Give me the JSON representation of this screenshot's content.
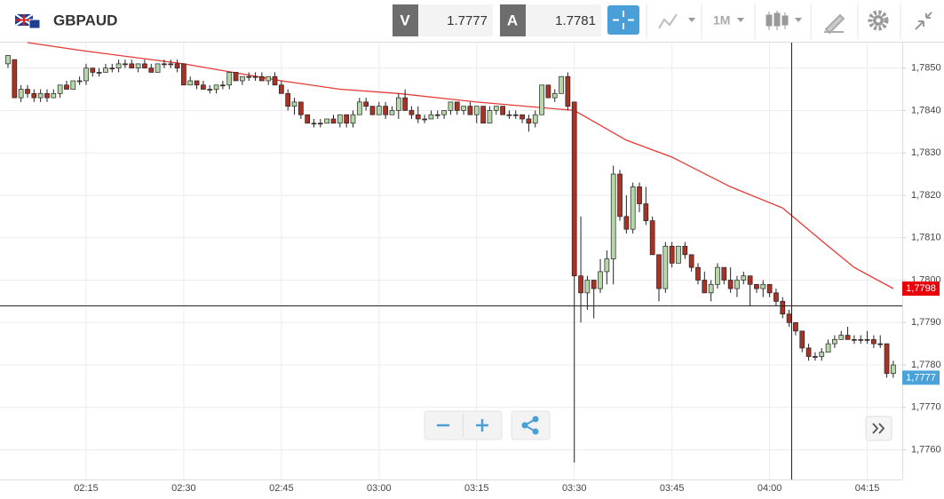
{
  "toolbar": {
    "symbol": "GBPAUD",
    "bid_label": "V",
    "bid": "1.7777",
    "ask_label": "A",
    "ask": "1.7781",
    "timeframe": "1M"
  },
  "chart_data": {
    "type": "candlestick",
    "x": [
      "02:03",
      "02:04",
      "02:05",
      "02:06",
      "02:07",
      "02:08",
      "02:09",
      "02:10",
      "02:11",
      "02:12",
      "02:13",
      "02:14",
      "02:15",
      "02:16",
      "02:17",
      "02:18",
      "02:19",
      "02:20",
      "02:21",
      "02:22",
      "02:23",
      "02:24",
      "02:25",
      "02:26",
      "02:27",
      "02:28",
      "02:29",
      "02:30",
      "02:31",
      "02:32",
      "02:33",
      "02:34",
      "02:35",
      "02:36",
      "02:37",
      "02:38",
      "02:39",
      "02:40",
      "02:41",
      "02:42",
      "02:43",
      "02:44",
      "02:45",
      "02:46",
      "02:47",
      "02:48",
      "02:49",
      "02:50",
      "02:51",
      "02:52",
      "02:53",
      "02:54",
      "02:55",
      "02:56",
      "02:57",
      "02:58",
      "02:59",
      "03:00",
      "03:01",
      "03:02",
      "03:03",
      "03:04",
      "03:05",
      "03:06",
      "03:07",
      "03:08",
      "03:09",
      "03:10",
      "03:11",
      "03:12",
      "03:13",
      "03:14",
      "03:15",
      "03:16",
      "03:17",
      "03:18",
      "03:19",
      "03:20",
      "03:21",
      "03:22",
      "03:23",
      "03:24",
      "03:25",
      "03:26",
      "03:27",
      "03:28",
      "03:29",
      "03:30",
      "03:31",
      "03:32",
      "03:33",
      "03:34",
      "03:35",
      "03:36",
      "03:37",
      "03:38",
      "03:39",
      "03:40",
      "03:41",
      "03:42",
      "03:43",
      "03:44",
      "03:45",
      "03:46",
      "03:47",
      "03:48",
      "03:49",
      "03:50",
      "03:51",
      "03:52",
      "03:53",
      "03:54",
      "03:55",
      "03:56",
      "03:57",
      "03:58",
      "03:59",
      "04:00",
      "04:01",
      "04:02",
      "04:03",
      "04:04",
      "04:05",
      "04:06",
      "04:07",
      "04:08",
      "04:09",
      "04:10",
      "04:11",
      "04:12",
      "04:13",
      "04:14",
      "04:15",
      "04:16",
      "04:17",
      "04:18",
      "04:19"
    ],
    "candles": [
      [
        1.7851,
        1.7853,
        1.785,
        1.7853
      ],
      [
        1.7852,
        1.7852,
        1.7843,
        1.7843
      ],
      [
        1.7843,
        1.7846,
        1.7842,
        1.7845
      ],
      [
        1.7845,
        1.7846,
        1.7843,
        1.7844
      ],
      [
        1.7844,
        1.7845,
        1.7842,
        1.7843
      ],
      [
        1.7843,
        1.7845,
        1.7842,
        1.7844
      ],
      [
        1.7844,
        1.7845,
        1.7842,
        1.7843
      ],
      [
        1.7843,
        1.7845,
        1.7843,
        1.7844
      ],
      [
        1.7844,
        1.7846,
        1.7843,
        1.7846
      ],
      [
        1.7846,
        1.7847,
        1.7845,
        1.7845
      ],
      [
        1.7845,
        1.7847,
        1.7845,
        1.7847
      ],
      [
        1.7847,
        1.7848,
        1.7846,
        1.7847
      ],
      [
        1.7847,
        1.7851,
        1.7846,
        1.785
      ],
      [
        1.785,
        1.785,
        1.7848,
        1.7849
      ],
      [
        1.7849,
        1.785,
        1.7848,
        1.7849
      ],
      [
        1.7849,
        1.7851,
        1.7849,
        1.785
      ],
      [
        1.785,
        1.7851,
        1.7849,
        1.785
      ],
      [
        1.785,
        1.7852,
        1.7849,
        1.7851
      ],
      [
        1.7851,
        1.7852,
        1.785,
        1.7851
      ],
      [
        1.7851,
        1.7852,
        1.785,
        1.785
      ],
      [
        1.785,
        1.7851,
        1.7849,
        1.7851
      ],
      [
        1.7851,
        1.7852,
        1.785,
        1.785
      ],
      [
        1.785,
        1.7851,
        1.7849,
        1.7849
      ],
      [
        1.7849,
        1.7851,
        1.7849,
        1.7851
      ],
      [
        1.7851,
        1.7852,
        1.785,
        1.7851
      ],
      [
        1.7851,
        1.7852,
        1.785,
        1.7851
      ],
      [
        1.7851,
        1.7852,
        1.7849,
        1.785
      ],
      [
        1.7851,
        1.7851,
        1.7846,
        1.7846
      ],
      [
        1.7846,
        1.7848,
        1.7846,
        1.7847
      ],
      [
        1.7847,
        1.7847,
        1.7845,
        1.7846
      ],
      [
        1.7846,
        1.7847,
        1.7845,
        1.7845
      ],
      [
        1.7845,
        1.7846,
        1.7844,
        1.7845
      ],
      [
        1.7845,
        1.7846,
        1.7844,
        1.7846
      ],
      [
        1.7846,
        1.7847,
        1.7845,
        1.7846
      ],
      [
        1.7846,
        1.7849,
        1.7845,
        1.7849
      ],
      [
        1.7849,
        1.7849,
        1.7847,
        1.7847
      ],
      [
        1.7847,
        1.7848,
        1.7846,
        1.7848
      ],
      [
        1.7848,
        1.7849,
        1.7847,
        1.7848
      ],
      [
        1.7848,
        1.7849,
        1.7847,
        1.7848
      ],
      [
        1.7848,
        1.7849,
        1.7847,
        1.7847
      ],
      [
        1.7847,
        1.7848,
        1.7846,
        1.7848
      ],
      [
        1.7848,
        1.7849,
        1.7846,
        1.7846
      ],
      [
        1.7846,
        1.7847,
        1.7844,
        1.7844
      ],
      [
        1.7844,
        1.7845,
        1.784,
        1.7841
      ],
      [
        1.7841,
        1.7843,
        1.7839,
        1.7842
      ],
      [
        1.7842,
        1.7842,
        1.7838,
        1.7839
      ],
      [
        1.7839,
        1.7839,
        1.7837,
        1.7837
      ],
      [
        1.7837,
        1.7838,
        1.7836,
        1.7837
      ],
      [
        1.7837,
        1.7838,
        1.7836,
        1.7837
      ],
      [
        1.7837,
        1.7838,
        1.7837,
        1.7838
      ],
      [
        1.7838,
        1.7839,
        1.7837,
        1.7837
      ],
      [
        1.7837,
        1.7839,
        1.7836,
        1.7839
      ],
      [
        1.7839,
        1.7839,
        1.7836,
        1.7837
      ],
      [
        1.7837,
        1.784,
        1.7836,
        1.7839
      ],
      [
        1.7839,
        1.7843,
        1.7839,
        1.7842
      ],
      [
        1.7842,
        1.7843,
        1.784,
        1.7841
      ],
      [
        1.7841,
        1.7841,
        1.7839,
        1.7839
      ],
      [
        1.7839,
        1.7842,
        1.7839,
        1.7841
      ],
      [
        1.7841,
        1.7842,
        1.7838,
        1.7839
      ],
      [
        1.7839,
        1.7841,
        1.7839,
        1.784
      ],
      [
        1.784,
        1.7844,
        1.7838,
        1.7843
      ],
      [
        1.7843,
        1.7845,
        1.784,
        1.784
      ],
      [
        1.784,
        1.7841,
        1.7838,
        1.7839
      ],
      [
        1.7839,
        1.7841,
        1.7837,
        1.7838
      ],
      [
        1.7838,
        1.7839,
        1.7837,
        1.7838
      ],
      [
        1.7838,
        1.784,
        1.7838,
        1.7839
      ],
      [
        1.7839,
        1.784,
        1.7838,
        1.7839
      ],
      [
        1.7839,
        1.784,
        1.7838,
        1.784
      ],
      [
        1.784,
        1.7842,
        1.7839,
        1.7842
      ],
      [
        1.7842,
        1.7842,
        1.7839,
        1.784
      ],
      [
        1.784,
        1.7841,
        1.7839,
        1.7841
      ],
      [
        1.7841,
        1.7842,
        1.7839,
        1.7839
      ],
      [
        1.7839,
        1.7841,
        1.7837,
        1.7841
      ],
      [
        1.7841,
        1.7841,
        1.7837,
        1.7837
      ],
      [
        1.7837,
        1.7841,
        1.7837,
        1.784
      ],
      [
        1.784,
        1.7841,
        1.7839,
        1.7841
      ],
      [
        1.7841,
        1.7841,
        1.7839,
        1.7839
      ],
      [
        1.7839,
        1.784,
        1.7838,
        1.7839
      ],
      [
        1.7839,
        1.784,
        1.7838,
        1.7839
      ],
      [
        1.7839,
        1.7839,
        1.7837,
        1.7838
      ],
      [
        1.7838,
        1.7839,
        1.7835,
        1.7837
      ],
      [
        1.7837,
        1.784,
        1.7836,
        1.7839
      ],
      [
        1.7839,
        1.7846,
        1.7839,
        1.7846
      ],
      [
        1.7846,
        1.7846,
        1.7843,
        1.7843
      ],
      [
        1.7843,
        1.7845,
        1.7842,
        1.7844
      ],
      [
        1.7844,
        1.7848,
        1.7844,
        1.7848
      ],
      [
        1.7848,
        1.7849,
        1.784,
        1.7841
      ],
      [
        1.7842,
        1.7842,
        1.7757,
        1.7801
      ],
      [
        1.7801,
        1.7815,
        1.779,
        1.7797
      ],
      [
        1.7797,
        1.7801,
        1.7793,
        1.78
      ],
      [
        1.78,
        1.78,
        1.7791,
        1.7798
      ],
      [
        1.7798,
        1.7805,
        1.7797,
        1.7802
      ],
      [
        1.7802,
        1.7807,
        1.7799,
        1.7805
      ],
      [
        1.7805,
        1.7827,
        1.7799,
        1.7825
      ],
      [
        1.7825,
        1.7826,
        1.7814,
        1.7815
      ],
      [
        1.7815,
        1.782,
        1.7811,
        1.7812
      ],
      [
        1.7812,
        1.7823,
        1.7811,
        1.7822
      ],
      [
        1.7822,
        1.7823,
        1.7816,
        1.7818
      ],
      [
        1.7818,
        1.7822,
        1.7813,
        1.7814
      ],
      [
        1.7814,
        1.7815,
        1.7806,
        1.7806
      ],
      [
        1.7806,
        1.7806,
        1.7795,
        1.7798
      ],
      [
        1.7798,
        1.7809,
        1.7797,
        1.7808
      ],
      [
        1.7808,
        1.7809,
        1.7803,
        1.7804
      ],
      [
        1.7804,
        1.7808,
        1.7804,
        1.7808
      ],
      [
        1.7808,
        1.7809,
        1.7805,
        1.7806
      ],
      [
        1.7806,
        1.7806,
        1.7802,
        1.7803
      ],
      [
        1.7803,
        1.7804,
        1.7799,
        1.78
      ],
      [
        1.78,
        1.7802,
        1.7797,
        1.7797
      ],
      [
        1.7797,
        1.78,
        1.7795,
        1.7799
      ],
      [
        1.7799,
        1.7804,
        1.7798,
        1.7803
      ],
      [
        1.7803,
        1.7803,
        1.7799,
        1.78
      ],
      [
        1.78,
        1.7803,
        1.7797,
        1.7798
      ],
      [
        1.7798,
        1.7801,
        1.7796,
        1.78
      ],
      [
        1.78,
        1.7802,
        1.7799,
        1.7801
      ],
      [
        1.7801,
        1.7801,
        1.7794,
        1.7799
      ],
      [
        1.7799,
        1.7799,
        1.7797,
        1.7798
      ],
      [
        1.7798,
        1.78,
        1.7796,
        1.7799
      ],
      [
        1.7799,
        1.7799,
        1.7796,
        1.7797
      ],
      [
        1.7797,
        1.7798,
        1.7794,
        1.7795
      ],
      [
        1.7795,
        1.7796,
        1.7791,
        1.7792
      ],
      [
        1.7792,
        1.7793,
        1.7789,
        1.779
      ],
      [
        1.779,
        1.779,
        1.7787,
        1.7788
      ],
      [
        1.7788,
        1.7788,
        1.7783,
        1.7784
      ],
      [
        1.7784,
        1.7785,
        1.7781,
        1.7782
      ],
      [
        1.7782,
        1.7783,
        1.7781,
        1.7782
      ],
      [
        1.7782,
        1.7784,
        1.7781,
        1.7783
      ],
      [
        1.7783,
        1.7786,
        1.7783,
        1.7785
      ],
      [
        1.7785,
        1.7787,
        1.7784,
        1.7786
      ],
      [
        1.7786,
        1.7788,
        1.7786,
        1.7787
      ],
      [
        1.7787,
        1.7789,
        1.7786,
        1.7786
      ],
      [
        1.7786,
        1.7787,
        1.7785,
        1.7786
      ],
      [
        1.7786,
        1.7787,
        1.7785,
        1.7786
      ],
      [
        1.7786,
        1.7788,
        1.7785,
        1.7786
      ],
      [
        1.7786,
        1.7787,
        1.7784,
        1.7785
      ],
      [
        1.7785,
        1.7787,
        1.7784,
        1.7785
      ],
      [
        1.7785,
        1.7785,
        1.7777,
        1.7778
      ],
      [
        1.7778,
        1.7781,
        1.7777,
        1.778
      ]
    ],
    "up_color": "#b7d7a8",
    "down_color": "#a93226",
    "moving_average": {
      "color": "#e53935",
      "x": [
        "02:06",
        "02:15",
        "02:30",
        "02:45",
        "02:54",
        "03:03",
        "03:15",
        "03:30",
        "03:38",
        "03:45",
        "03:54",
        "04:02",
        "04:09",
        "04:13",
        "04:19"
      ],
      "values": [
        1.7856,
        1.7854,
        1.7851,
        1.7847,
        1.7845,
        1.7844,
        1.7842,
        1.784,
        1.7833,
        1.7829,
        1.7822,
        1.7817,
        1.7808,
        1.7803,
        1.7798
      ]
    },
    "ylim": [
      1.7753,
      1.7856
    ],
    "yticks": [
      {
        "value": 1.785,
        "label": "1,7850"
      },
      {
        "value": 1.784,
        "label": "1,7840"
      },
      {
        "value": 1.783,
        "label": "1,7830"
      },
      {
        "value": 1.782,
        "label": "1,7820"
      },
      {
        "value": 1.781,
        "label": "1,7810"
      },
      {
        "value": 1.78,
        "label": "1,7800"
      },
      {
        "value": 1.779,
        "label": "1,7790"
      },
      {
        "value": 1.778,
        "label": "1,7780"
      },
      {
        "value": 1.777,
        "label": "1,7770"
      },
      {
        "value": 1.776,
        "label": "1,7760"
      }
    ],
    "xticks": [
      "02:15",
      "02:30",
      "02:45",
      "03:00",
      "03:15",
      "03:30",
      "03:45",
      "04:00",
      "04:15"
    ],
    "grid": true,
    "price_tags": [
      {
        "value": 1.7798,
        "label": "1,7798",
        "color": "#e8000b"
      },
      {
        "value": 1.7777,
        "label": "1,7777",
        "color": "#4aa3d8"
      }
    ]
  }
}
